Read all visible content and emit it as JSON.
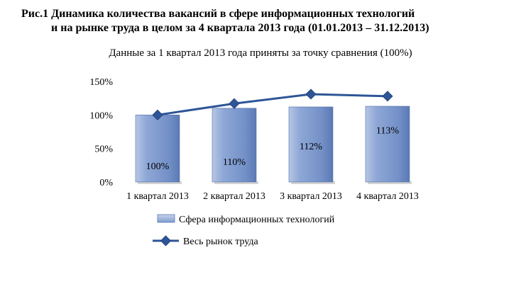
{
  "figure": {
    "title_line1": "Рис.1 Динамика количества вакансий в сфере информационных технологий",
    "title_line2": "и на рынке труда в целом за 4 квартала 2013 года (01.01.2013 – 31.12.2013)",
    "subtitle": "Данные за 1 квартал 2013 года приняты за точку сравнения (100%)"
  },
  "chart_data": {
    "type": "bar",
    "categories": [
      "1 квартал 2013",
      "2 квартал 2013",
      "3 квартал 2013",
      "4 квартал 2013"
    ],
    "y_ticks": [
      "0%",
      "50%",
      "100%",
      "150%"
    ],
    "ylim": [
      0,
      150
    ],
    "series": [
      {
        "name": "Сфера информационных технологий",
        "type": "bar",
        "values": [
          100,
          110,
          112,
          113
        ],
        "data_labels": [
          "100%",
          "110%",
          "112%",
          "113%"
        ],
        "color": "#7f9ccf"
      },
      {
        "name": "Весь рынок труда",
        "type": "line",
        "values": [
          100,
          117,
          131,
          128
        ],
        "color": "#2e5597"
      }
    ],
    "legend_position": "bottom",
    "grid": false
  }
}
